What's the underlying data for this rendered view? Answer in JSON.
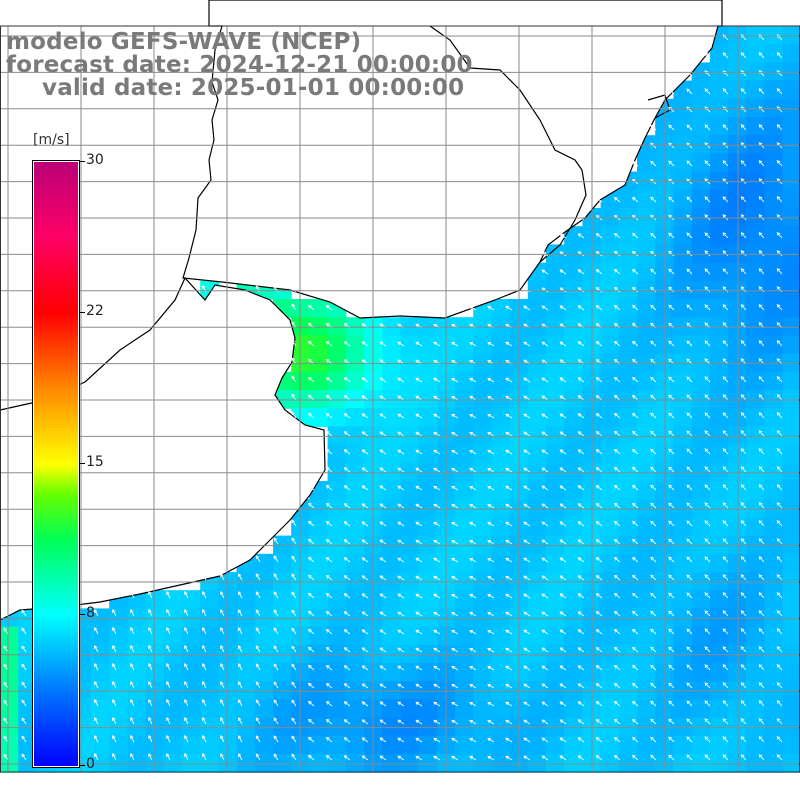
{
  "header": {
    "model": "modelo GEFS-WAVE (NCEP)",
    "forecast": "forecast date: 2024-12-21 00:00:00",
    "valid": "valid date: 2025-01-01 00:00:00"
  },
  "colorbar": {
    "unit": "[m/s]",
    "min": 0,
    "max": 30,
    "ticks": [
      {
        "value": 30,
        "label": "30"
      },
      {
        "value": 22.5,
        "label": "22"
      },
      {
        "value": 15,
        "label": "15"
      },
      {
        "value": 7.5,
        "label": "8"
      },
      {
        "value": 0,
        "label": "0"
      }
    ],
    "stops": [
      {
        "v": 0,
        "color": "#0000ff"
      },
      {
        "v": 3.75,
        "color": "#0077ff"
      },
      {
        "v": 7.5,
        "color": "#00ffff"
      },
      {
        "v": 11.25,
        "color": "#00ff55"
      },
      {
        "v": 13.5,
        "color": "#66ff00"
      },
      {
        "v": 15,
        "color": "#ffff00"
      },
      {
        "v": 18.75,
        "color": "#ff8800"
      },
      {
        "v": 22.5,
        "color": "#ff0000"
      },
      {
        "v": 26.25,
        "color": "#ff0066"
      },
      {
        "v": 30,
        "color": "#bb0077"
      }
    ]
  },
  "map": {
    "grid": "on",
    "wind_direction": "north-westward (from south-east)",
    "colors": {
      "land": "#ffffff",
      "coast": "#000000",
      "grid": "#808080",
      "arrow": "#ffffff"
    }
  }
}
